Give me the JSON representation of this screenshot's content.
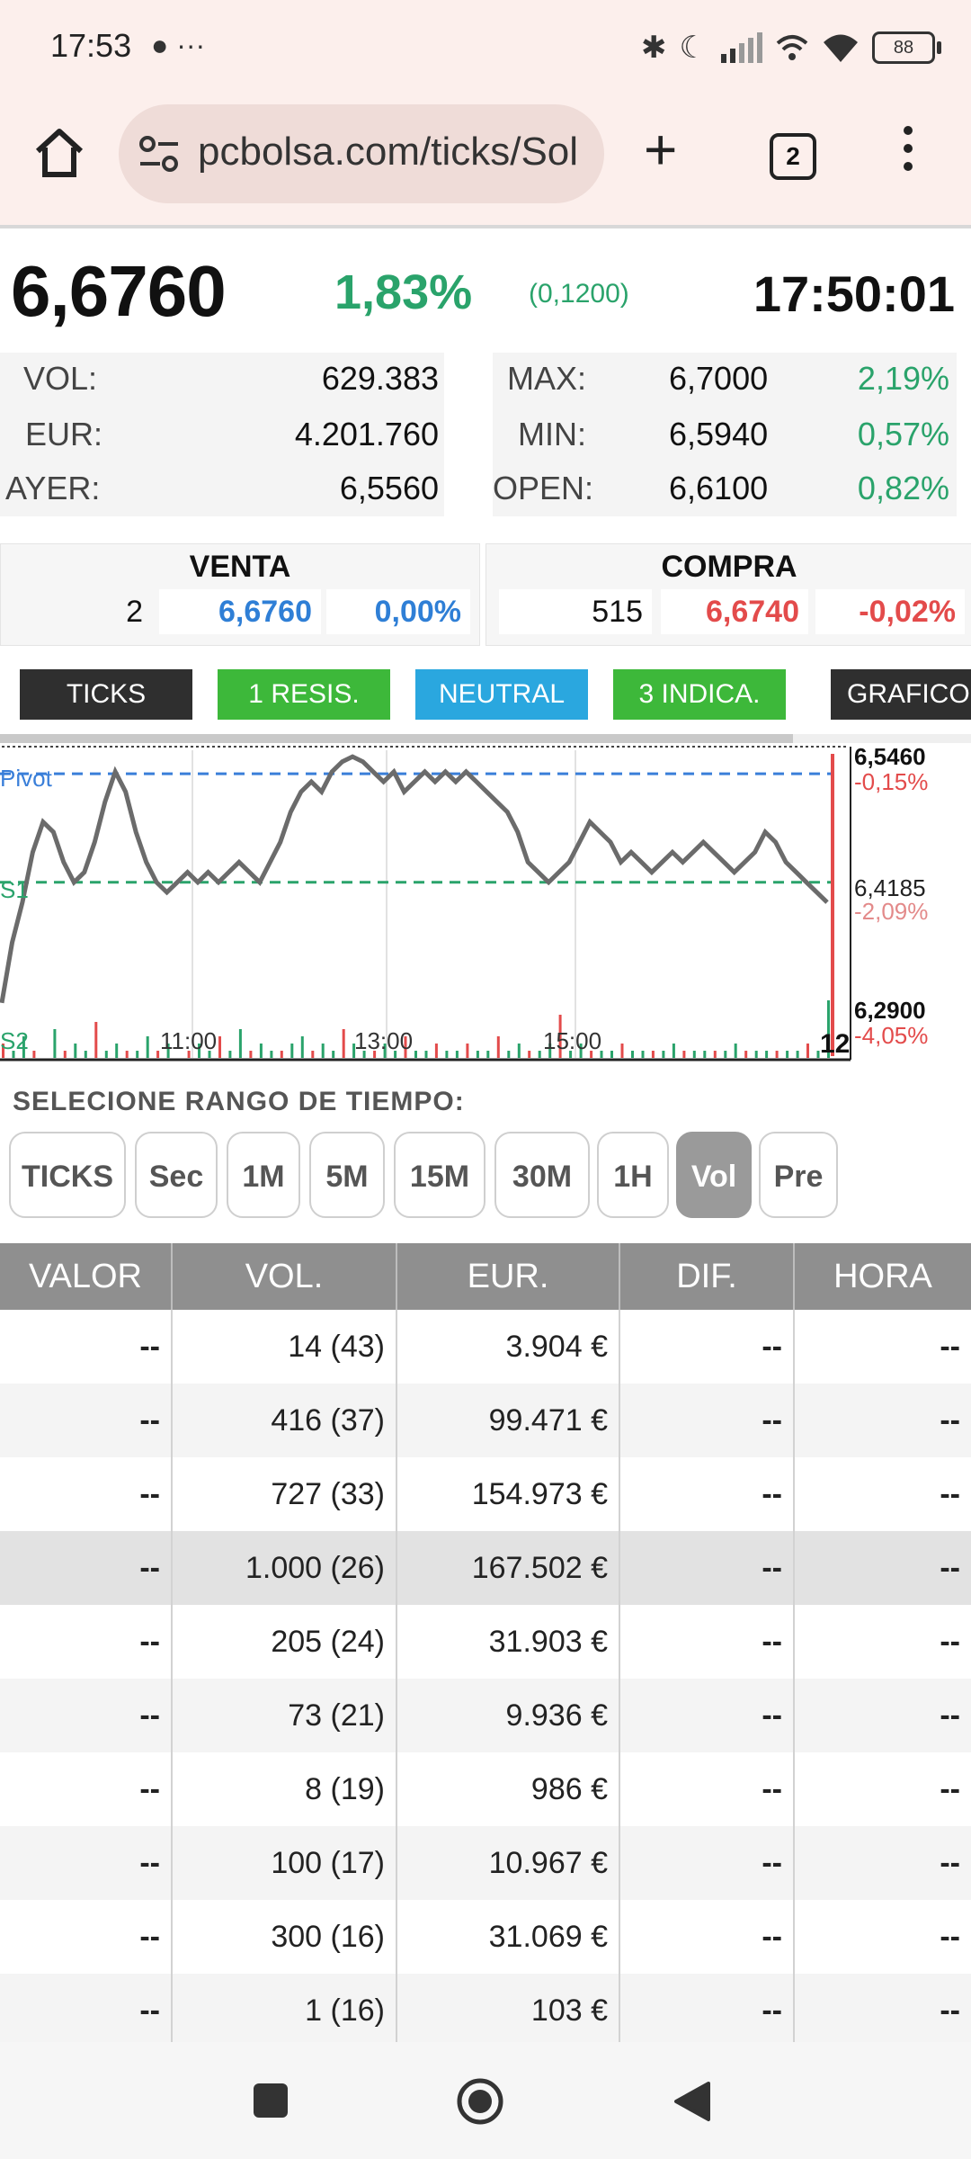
{
  "status_bar": {
    "time": "17:53",
    "notification_icons": "● ···",
    "battery": "88"
  },
  "browser": {
    "url": "pcbolsa.com/ticks/Sol",
    "tab_count": "2"
  },
  "quote": {
    "price": "6,6760",
    "change_pct": "1,83%",
    "change_abs": "(0,1200)",
    "time": "17:50:01",
    "stats_left": [
      {
        "label": "VOL:",
        "value": "629.383"
      },
      {
        "label": "EUR:",
        "value": "4.201.760"
      },
      {
        "label": "AYER:",
        "value": "6,5560"
      }
    ],
    "stats_right": [
      {
        "label": "MAX:",
        "value": "6,7000",
        "pct": "2,19%"
      },
      {
        "label": "MIN:",
        "value": "6,5940",
        "pct": "0,57%"
      },
      {
        "label": "OPEN:",
        "value": "6,6100",
        "pct": "0,82%"
      }
    ]
  },
  "order_book": {
    "venta": {
      "title": "VENTA",
      "qty": "2",
      "price": "6,6760",
      "pct": "0,00%"
    },
    "compra": {
      "title": "COMPRA",
      "qty": "515",
      "price": "6,6740",
      "pct": "-0,02%"
    }
  },
  "indicator_tabs": [
    {
      "label": "TICKS",
      "color": "#2f2f2f"
    },
    {
      "label": "1 RESIS.",
      "color": "#3db83a"
    },
    {
      "label": "NEUTRAL",
      "color": "#2aa7df"
    },
    {
      "label": "3 INDICA.",
      "color": "#3db83a"
    },
    {
      "label": "GRAFICO I",
      "color": "#2f2f2f"
    }
  ],
  "chart_data": {
    "type": "line",
    "x_ticks": [
      "11:00",
      "13:00",
      "15:00"
    ],
    "right_edge_label": "12",
    "levels": [
      {
        "name": "Pivot",
        "color": "#3a7fd9"
      },
      {
        "name": "S1",
        "color": "#2aa36b"
      },
      {
        "name": "S2",
        "color": "#2aa36b"
      }
    ],
    "y_axis": [
      {
        "price": "6,5460",
        "pct": "-0,15%"
      },
      {
        "price": "6,4185",
        "pct": "-2,09%"
      },
      {
        "price": "6,2900",
        "pct": "-4,05%"
      }
    ],
    "ylim": [
      6.29,
      6.546
    ],
    "pivot_value": 6.528,
    "s1_value": 6.42,
    "price_series": [
      6.3,
      6.36,
      6.4,
      6.45,
      6.48,
      6.47,
      6.44,
      6.42,
      6.43,
      6.46,
      6.5,
      6.53,
      6.51,
      6.47,
      6.44,
      6.42,
      6.41,
      6.42,
      6.43,
      6.42,
      6.43,
      6.42,
      6.43,
      6.44,
      6.43,
      6.42,
      6.44,
      6.46,
      6.49,
      6.51,
      6.52,
      6.51,
      6.53,
      6.54,
      6.545,
      6.54,
      6.53,
      6.52,
      6.53,
      6.51,
      6.52,
      6.53,
      6.52,
      6.53,
      6.52,
      6.53,
      6.52,
      6.51,
      6.5,
      6.49,
      6.47,
      6.44,
      6.43,
      6.42,
      6.43,
      6.44,
      6.46,
      6.48,
      6.47,
      6.46,
      6.44,
      6.45,
      6.44,
      6.43,
      6.44,
      6.45,
      6.44,
      6.45,
      6.46,
      6.45,
      6.44,
      6.43,
      6.44,
      6.45,
      6.47,
      6.46,
      6.44,
      6.43,
      6.42,
      6.41,
      6.4
    ],
    "volume_series": [
      2,
      1,
      3,
      1,
      0,
      4,
      1,
      2,
      1,
      5,
      1,
      2,
      1,
      1,
      3,
      1,
      2,
      0,
      1,
      2,
      1,
      3,
      1,
      4,
      1,
      2,
      1,
      1,
      2,
      3,
      1,
      2,
      1,
      4,
      2,
      1,
      1,
      2,
      1,
      3,
      1,
      1,
      2,
      1,
      1,
      2,
      1,
      1,
      3,
      1,
      2,
      1,
      1,
      2,
      6,
      1,
      2,
      1,
      1,
      1,
      2,
      1,
      1,
      1,
      1,
      2,
      1,
      1,
      1,
      1,
      1,
      2,
      1,
      1,
      1,
      1,
      1,
      1,
      2,
      1,
      8
    ]
  },
  "range_selector": {
    "label": "SELECIONE RANGO DE TIEMPO:",
    "buttons": [
      "TICKS",
      "Sec",
      "1M",
      "5M",
      "15M",
      "30M",
      "1H",
      "Vol",
      "Pre"
    ],
    "active": "Vol"
  },
  "table": {
    "headers": [
      "VALOR",
      "VOL.",
      "EUR.",
      "DIF.",
      "HORA"
    ],
    "rows": [
      [
        "--",
        "14 (43)",
        "3.904 €",
        "--",
        "--"
      ],
      [
        "--",
        "416 (37)",
        "99.471 €",
        "--",
        "--"
      ],
      [
        "--",
        "727 (33)",
        "154.973 €",
        "--",
        "--"
      ],
      [
        "--",
        "1.000 (26)",
        "167.502 €",
        "--",
        "--"
      ],
      [
        "--",
        "205 (24)",
        "31.903 €",
        "--",
        "--"
      ],
      [
        "--",
        "73 (21)",
        "9.936 €",
        "--",
        "--"
      ],
      [
        "--",
        "8 (19)",
        "986 €",
        "--",
        "--"
      ],
      [
        "--",
        "100 (17)",
        "10.967 €",
        "--",
        "--"
      ],
      [
        "--",
        "300 (16)",
        "31.069 €",
        "--",
        "--"
      ],
      [
        "--",
        "1 (16)",
        "103 €",
        "--",
        "--"
      ]
    ],
    "highlighted_row": 3
  },
  "colors": {
    "up": "#2aa36b",
    "down": "#e34b4b",
    "blue": "#2f7fd6"
  }
}
